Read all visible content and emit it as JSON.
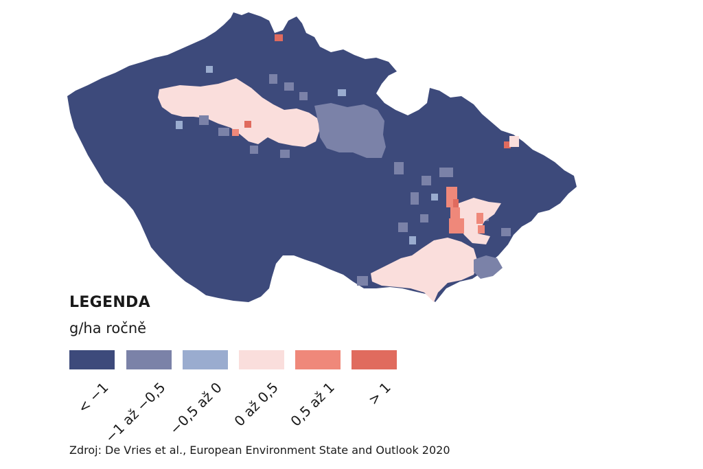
{
  "map": {
    "region_colors": {
      "lt_neg1": "#3d4a7b",
      "neg1_neg05": "#7b82a8",
      "neg05_0": "#9aaccf",
      "zero_05": "#fadedc",
      "half_1": "#ef887a",
      "gt_1": "#e06b5e"
    }
  },
  "legend": {
    "title": "LEGENDA",
    "unit": "g/ha ročně",
    "items": [
      {
        "label": "< −1",
        "color": "#3d4a7b"
      },
      {
        "label": "−1 až −0,5",
        "color": "#7b82a8"
      },
      {
        "label": "−0,5 až 0",
        "color": "#9aaccf"
      },
      {
        "label": "0 až 0,5",
        "color": "#fadedc"
      },
      {
        "label": "0,5 až 1",
        "color": "#ef887a"
      },
      {
        "label": "> 1",
        "color": "#e06b5e"
      }
    ]
  },
  "source": "Zdroj: De Vries et al., European Environment State and Outlook 2020"
}
